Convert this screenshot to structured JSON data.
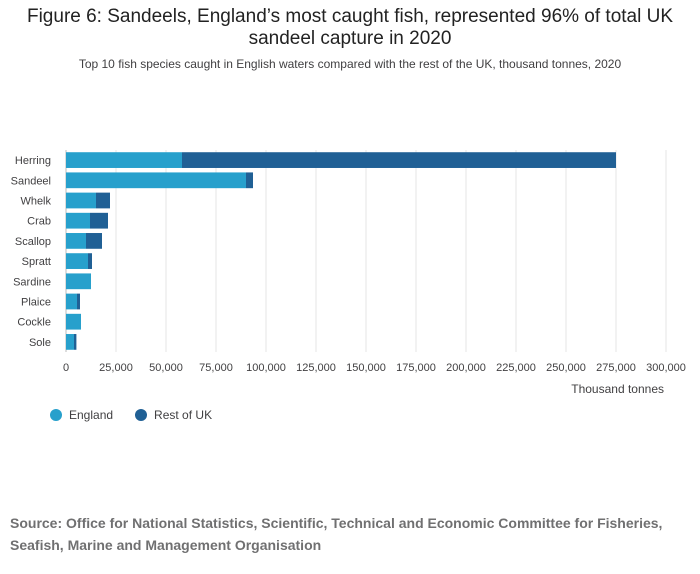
{
  "title": "Figure 6: Sandeels, England’s most caught fish, represented 96% of total UK sandeel capture in 2020",
  "subtitle": "Top 10 fish species caught in English waters compared with the rest of the UK, thousand tonnes, 2020",
  "source": "Source: Office for National Statistics, Scientific, Technical and Economic Committee for Fisheries, Seafish, Marine and Management Organisation",
  "colors": {
    "england": "#27a0cc",
    "rest_of_uk": "#206095",
    "grid": "#e5e5e5",
    "axis": "#bbbbbb"
  },
  "chart_data": {
    "type": "bar",
    "orientation": "horizontal",
    "stacked": true,
    "categories": [
      "Herring",
      "Sandeel",
      "Whelk",
      "Crab",
      "Scallop",
      "Spratt",
      "Sardine",
      "Plaice",
      "Cockle",
      "Sole"
    ],
    "series": [
      {
        "name": "England",
        "values": [
          58000,
          90000,
          15000,
          12000,
          10000,
          11000,
          12500,
          5500,
          7500,
          4000
        ]
      },
      {
        "name": "Rest of UK",
        "values": [
          217000,
          3500,
          7000,
          9000,
          8000,
          2000,
          0,
          1500,
          0,
          1200
        ]
      }
    ],
    "xlabel": "Thousand tonnes",
    "ylabel": "",
    "xlim": [
      0,
      300000
    ],
    "xticks": [
      0,
      25000,
      50000,
      75000,
      100000,
      125000,
      150000,
      175000,
      200000,
      225000,
      250000,
      275000,
      300000
    ],
    "xtick_labels": [
      "0",
      "25,000",
      "50,000",
      "75,000",
      "100,000",
      "125,000",
      "150,000",
      "175,000",
      "200,000",
      "225,000",
      "250,000",
      "275,000",
      "300,000"
    ],
    "grid": true,
    "legend_position": "bottom-left"
  }
}
